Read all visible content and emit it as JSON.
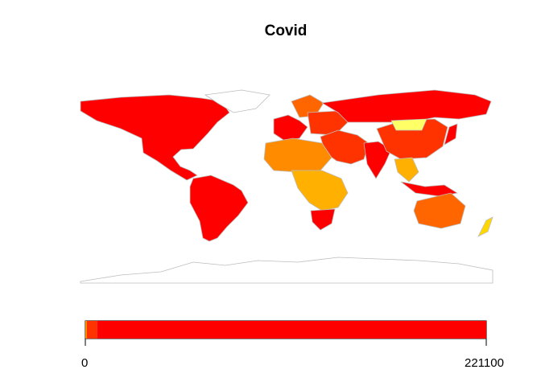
{
  "title": "Covid",
  "legend": {
    "min_label": "0",
    "max_label": "221100",
    "min": 0,
    "max": 221100,
    "palette": [
      "#FFFF66",
      "#FFD700",
      "#FFB000",
      "#FF8C00",
      "#FF6600",
      "#FF3300",
      "#FF0000"
    ],
    "shown_bins": [
      {
        "color": "#FF8C00",
        "share": 0.004
      },
      {
        "color": "#FF3300",
        "share": 0.026
      },
      {
        "color": "#FF0000",
        "share": 0.97
      }
    ]
  },
  "colors": {
    "border": "#BDBDBD",
    "no_data": "#FFFFFF"
  },
  "regions": [
    {
      "name": "north-america",
      "color": "#FF0000"
    },
    {
      "name": "greenland",
      "color": "#FFFFFF"
    },
    {
      "name": "south-america",
      "color": "#FF0000"
    },
    {
      "name": "west-europe",
      "color": "#FF0000"
    },
    {
      "name": "scandinavia",
      "color": "#FF6600"
    },
    {
      "name": "eastern-europe",
      "color": "#FF3300"
    },
    {
      "name": "russia",
      "color": "#FF0000"
    },
    {
      "name": "middle-east",
      "color": "#FF3300"
    },
    {
      "name": "india",
      "color": "#FF0000"
    },
    {
      "name": "china",
      "color": "#FF3300"
    },
    {
      "name": "mongolia",
      "color": "#FFFF66"
    },
    {
      "name": "japan",
      "color": "#FF0000"
    },
    {
      "name": "southeast-asia",
      "color": "#FFB000"
    },
    {
      "name": "indonesia",
      "color": "#FF0000"
    },
    {
      "name": "north-africa",
      "color": "#FF8C00"
    },
    {
      "name": "central-africa",
      "color": "#FFB000"
    },
    {
      "name": "south-africa",
      "color": "#FF0000"
    },
    {
      "name": "australia",
      "color": "#FF6600"
    },
    {
      "name": "new-zealand",
      "color": "#FFD700"
    },
    {
      "name": "antarctica",
      "color": "#FFFFFF"
    }
  ]
}
